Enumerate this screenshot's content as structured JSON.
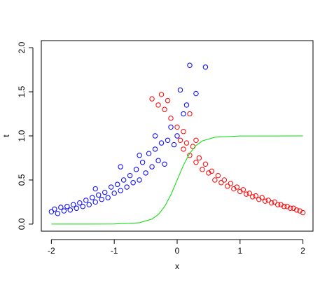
{
  "chart_data": {
    "type": "scatter",
    "x_label": "x",
    "y_label": "t",
    "xlim": [
      -2.16,
      2.16
    ],
    "ylim": [
      -0.08,
      2.08
    ],
    "xticks": [
      -2,
      -1,
      0,
      1,
      2
    ],
    "yticks": [
      0.0,
      0.5,
      1.0,
      1.5,
      2.0
    ],
    "series": [
      {
        "color": "#0000ff",
        "x": [
          -2.0,
          -1.95,
          -1.9,
          -1.85,
          -1.8,
          -1.75,
          -1.7,
          -1.65,
          -1.6,
          -1.55,
          -1.5,
          -1.45,
          -1.4,
          -1.35,
          -1.3,
          -1.25,
          -1.2,
          -1.15,
          -1.1,
          -1.05,
          -1.0,
          -0.95,
          -0.9,
          -0.85,
          -0.8,
          -0.75,
          -0.7,
          -0.65,
          -0.6,
          -0.55,
          -0.5,
          -0.45,
          -0.4,
          -0.35,
          -0.3,
          -0.25,
          -0.2,
          -0.15,
          -0.1,
          -0.05,
          0.0,
          0.05,
          0.1,
          0.15,
          0.2,
          0.3,
          0.45,
          -0.35,
          -0.6,
          -1.3,
          -0.9
        ],
        "values": [
          0.14,
          0.17,
          0.12,
          0.19,
          0.15,
          0.2,
          0.16,
          0.22,
          0.18,
          0.24,
          0.2,
          0.27,
          0.22,
          0.3,
          0.25,
          0.33,
          0.28,
          0.36,
          0.3,
          0.42,
          0.35,
          0.45,
          0.38,
          0.5,
          0.42,
          0.55,
          0.47,
          0.62,
          0.5,
          0.7,
          0.58,
          0.8,
          0.65,
          0.85,
          0.72,
          0.92,
          0.68,
          0.95,
          1.1,
          0.9,
          1.0,
          1.52,
          1.25,
          1.35,
          1.8,
          1.48,
          1.78,
          1.0,
          0.78,
          0.4,
          0.65
        ]
      },
      {
        "color": "#ff0000",
        "x": [
          -0.4,
          -0.3,
          -0.25,
          -0.2,
          -0.15,
          -0.1,
          0.0,
          0.05,
          0.1,
          0.15,
          0.2,
          0.25,
          0.3,
          0.35,
          0.4,
          0.45,
          0.5,
          0.55,
          0.6,
          0.65,
          0.7,
          0.75,
          0.8,
          0.85,
          0.9,
          0.95,
          1.0,
          1.05,
          1.1,
          1.15,
          1.2,
          1.25,
          1.3,
          1.35,
          1.4,
          1.45,
          1.5,
          1.55,
          1.6,
          1.65,
          1.7,
          1.75,
          1.8,
          1.85,
          1.9,
          1.95,
          2.0,
          0.2,
          0.1,
          0.3
        ],
        "values": [
          1.42,
          1.35,
          1.47,
          1.3,
          1.4,
          1.2,
          1.1,
          0.95,
          0.85,
          0.92,
          0.78,
          0.88,
          0.7,
          0.75,
          0.62,
          0.68,
          0.58,
          0.6,
          0.5,
          0.55,
          0.47,
          0.5,
          0.43,
          0.46,
          0.4,
          0.42,
          0.37,
          0.39,
          0.34,
          0.35,
          0.31,
          0.32,
          0.28,
          0.3,
          0.26,
          0.27,
          0.24,
          0.25,
          0.22,
          0.22,
          0.2,
          0.2,
          0.18,
          0.18,
          0.16,
          0.15,
          0.13,
          1.25,
          1.05,
          0.95
        ]
      },
      {
        "color": "#00dd00",
        "line": true,
        "x": [
          -2,
          -1,
          -0.6,
          -0.4,
          -0.3,
          -0.2,
          -0.1,
          0,
          0.1,
          0.2,
          0.3,
          0.4,
          0.6,
          1,
          2
        ],
        "values": [
          0,
          0.001,
          0.015,
          0.057,
          0.109,
          0.198,
          0.332,
          0.5,
          0.668,
          0.802,
          0.891,
          0.943,
          0.985,
          0.999,
          1
        ]
      }
    ]
  }
}
